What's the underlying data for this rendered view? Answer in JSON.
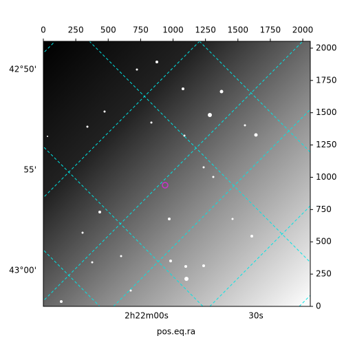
{
  "chart_data": {
    "type": "image",
    "xlim": [
      0,
      2058
    ],
    "ylim": [
      0,
      2053
    ],
    "xticks": [
      0,
      250,
      500,
      750,
      1000,
      1250,
      1500,
      1750,
      2000
    ],
    "yticks": [
      0,
      250,
      500,
      750,
      1000,
      1250,
      1500,
      1750,
      2000
    ],
    "x_label": "pos.eq.ra",
    "ra_tick_labels": [
      "2h22m00s",
      "30s"
    ],
    "dec_tick_labels": [
      "42°50'",
      "55'",
      "43°00'"
    ]
  }
}
